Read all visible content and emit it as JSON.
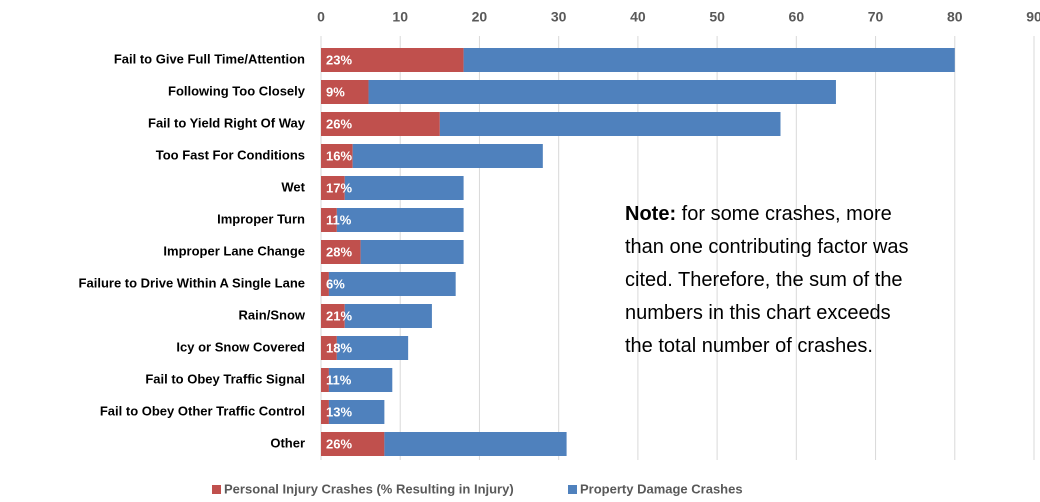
{
  "chart_data": {
    "type": "stacked-barh",
    "categories": [
      "Fail to Give Full Time/Attention",
      "Following Too Closely",
      "Fail to Yield Right Of Way",
      "Too Fast For Conditions",
      "Wet",
      "Improper Turn",
      "Improper Lane Change",
      "Failure to Drive Within A Single Lane",
      "Rain/Snow",
      "Icy or Snow Covered",
      "Fail to Obey Traffic Signal",
      "Fail to Obey Other Traffic Control",
      "Other"
    ],
    "series": [
      {
        "name": "Personal Injury Crashes (% Resulting in Injury)",
        "color": "#c0504d",
        "values": [
          18,
          6,
          15,
          4,
          3,
          2,
          5,
          1,
          3,
          2,
          1,
          1,
          8
        ]
      },
      {
        "name": "Property Damage Crashes",
        "color": "#4f81bd",
        "values": [
          62,
          59,
          43,
          24,
          15,
          16,
          13,
          16,
          11,
          9,
          8,
          7,
          23
        ]
      }
    ],
    "segment_labels": [
      "23%",
      "9%",
      "26%",
      "16%",
      "17%",
      "11%",
      "28%",
      "6%",
      "21%",
      "18%",
      "11%",
      "13%",
      "26%"
    ],
    "xlim": [
      0,
      90
    ],
    "xticks": [
      0,
      10,
      20,
      30,
      40,
      50,
      60,
      70,
      80,
      90
    ],
    "grid": true,
    "legend": "bottom",
    "note": {
      "label": "Note:",
      "lines": [
        " for some crashes, more",
        "than one contributing factor was",
        "cited. Therefore, the sum of the",
        "numbers in this chart exceeds",
        "the total number of crashes."
      ]
    }
  }
}
